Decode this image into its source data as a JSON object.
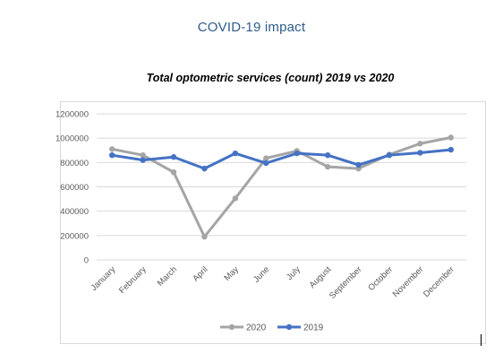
{
  "heading": "COVID-19 impact",
  "chart_data": {
    "type": "line",
    "title": "Total optometric services (count) 2019 vs 2020",
    "xlabel": "",
    "ylabel": "",
    "ylim": [
      0,
      1200000
    ],
    "yticks": [
      0,
      200000,
      400000,
      600000,
      800000,
      1000000,
      1200000
    ],
    "ytick_labels": [
      "0",
      "200000",
      "400000",
      "600000",
      "800000",
      "1000000",
      "1200000"
    ],
    "grid": true,
    "legend_position": "bottom",
    "categories": [
      "January",
      "February",
      "March",
      "April",
      "May",
      "June",
      "July",
      "August",
      "September",
      "October",
      "November",
      "December"
    ],
    "series": [
      {
        "name": "2020",
        "color": "#a5a5a5",
        "values": [
          910000,
          860000,
          720000,
          190000,
          505000,
          835000,
          895000,
          765000,
          750000,
          865000,
          955000,
          1005000
        ]
      },
      {
        "name": "2019",
        "color": "#4472c4",
        "values": [
          860000,
          820000,
          845000,
          750000,
          875000,
          795000,
          875000,
          860000,
          780000,
          860000,
          880000,
          905000
        ]
      }
    ]
  }
}
